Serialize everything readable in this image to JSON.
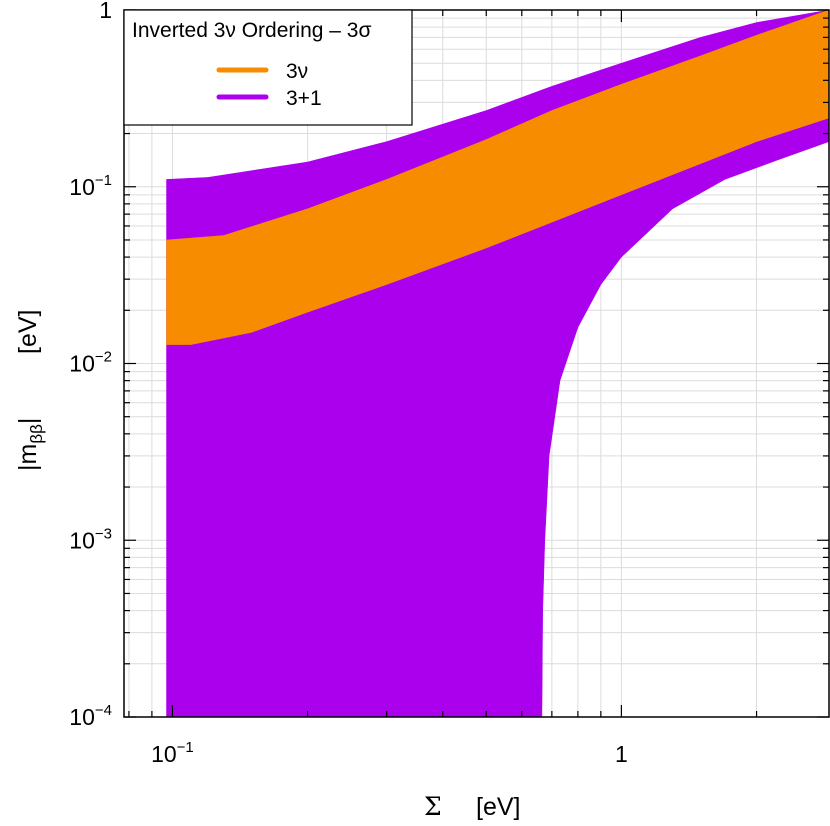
{
  "chart_data": {
    "type": "area",
    "title": "",
    "xlabel": {
      "symbol": "Σ",
      "unit": "[eV]"
    },
    "ylabel": {
      "base": "|m",
      "subscript": "ββ",
      "close": "|",
      "unit": "[eV]"
    },
    "x_scale": "log",
    "y_scale": "log",
    "xlim": [
      0.078,
      2.9
    ],
    "ylim": [
      0.0001,
      1
    ],
    "grid": true,
    "x_ticks": [
      {
        "value": 0.1,
        "base": "10",
        "exp": "−1"
      },
      {
        "value": 1,
        "base": "1",
        "exp": ""
      }
    ],
    "y_ticks": [
      {
        "value": 0.0001,
        "base": "10",
        "exp": "−4"
      },
      {
        "value": 0.001,
        "base": "10",
        "exp": "−3"
      },
      {
        "value": 0.01,
        "base": "10",
        "exp": "−2"
      },
      {
        "value": 0.1,
        "base": "10",
        "exp": "−1"
      },
      {
        "value": 1,
        "base": "1",
        "exp": ""
      }
    ],
    "legend": {
      "title": "Inverted 3ν Ordering – 3σ",
      "position": "top-left"
    },
    "series": [
      {
        "name": "3+1",
        "color": "#aa00ee",
        "upper": [
          [
            0.097,
            0.11
          ],
          [
            0.12,
            0.113
          ],
          [
            0.2,
            0.138
          ],
          [
            0.3,
            0.18
          ],
          [
            0.5,
            0.27
          ],
          [
            0.7,
            0.37
          ],
          [
            1.0,
            0.5
          ],
          [
            1.5,
            0.7
          ],
          [
            2.0,
            0.85
          ],
          [
            2.9,
            1.0
          ]
        ],
        "lower": [
          [
            0.097,
            0.0001
          ],
          [
            0.665,
            0.0001
          ],
          [
            0.668,
            0.0004
          ],
          [
            0.675,
            0.001
          ],
          [
            0.69,
            0.003
          ],
          [
            0.73,
            0.008
          ],
          [
            0.8,
            0.016
          ],
          [
            0.9,
            0.028
          ],
          [
            1.0,
            0.04
          ],
          [
            1.3,
            0.075
          ],
          [
            1.7,
            0.11
          ],
          [
            2.2,
            0.14
          ],
          [
            2.9,
            0.18
          ]
        ]
      },
      {
        "name": "3ν",
        "color": "#f78c00",
        "upper": [
          [
            0.097,
            0.05
          ],
          [
            0.13,
            0.053
          ],
          [
            0.2,
            0.075
          ],
          [
            0.3,
            0.11
          ],
          [
            0.5,
            0.185
          ],
          [
            0.7,
            0.27
          ],
          [
            1.0,
            0.38
          ],
          [
            1.5,
            0.55
          ],
          [
            2.0,
            0.72
          ],
          [
            2.9,
            1.0
          ]
        ],
        "lower": [
          [
            0.097,
            0.0128
          ],
          [
            0.11,
            0.0128
          ],
          [
            0.15,
            0.015
          ],
          [
            0.2,
            0.0195
          ],
          [
            0.3,
            0.028
          ],
          [
            0.5,
            0.045
          ],
          [
            0.7,
            0.063
          ],
          [
            1.0,
            0.09
          ],
          [
            1.5,
            0.135
          ],
          [
            2.0,
            0.18
          ],
          [
            2.9,
            0.245
          ]
        ]
      }
    ]
  }
}
